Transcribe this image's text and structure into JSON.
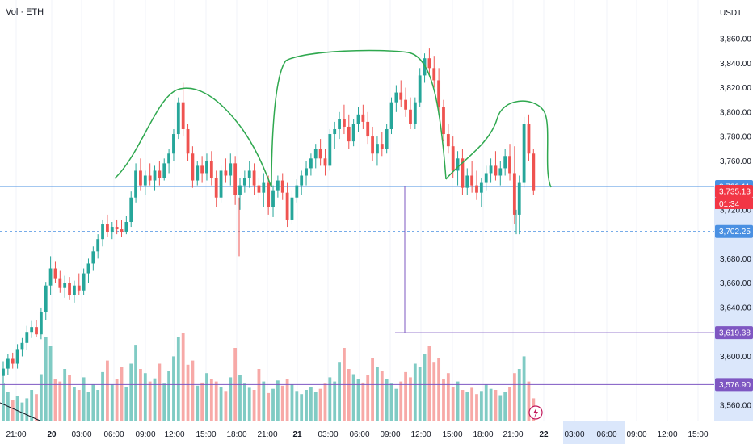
{
  "header": {
    "volume_label": "Vol · ETH",
    "currency": "USDT"
  },
  "colors": {
    "up": "#26a69a",
    "down": "#ef5350",
    "up_vol": "#80cbc4",
    "down_vol": "#f7a9a7",
    "h_line": "#4a90e2",
    "purple": "#7e57c2",
    "annotation": "#2fa84f",
    "price_flag": "#f23645"
  },
  "chart_data": {
    "type": "candlestick",
    "title": "",
    "y_axis": {
      "ticks": [
        "3,860.00",
        "3,840.00",
        "3,820.00",
        "3,800.00",
        "3,780.00",
        "3,760.00",
        "3,720.00",
        "3,680.00",
        "3,660.00",
        "3,640.00",
        "3,600.00",
        "3,560.00"
      ],
      "range": [
        3548,
        3874
      ]
    },
    "x_axis": {
      "ticks": [
        "21:00",
        "20",
        "03:00",
        "06:00",
        "09:00",
        "12:00",
        "15:00",
        "18:00",
        "21:00",
        "21",
        "03:00",
        "06:00",
        "09:00",
        "12:00",
        "15:00",
        "18:00",
        "21:00",
        "22",
        "03:00",
        "06:00",
        "09:00",
        "12:00",
        "15:00"
      ],
      "highlighted_ticks": [
        "03:00",
        "06:00"
      ]
    },
    "horizontal_lines": [
      {
        "label": "3,739.11",
        "value": 3739.11,
        "style": "solid",
        "color": "#4a90e2"
      },
      {
        "label": "3,702.25",
        "value": 3702.25,
        "style": "dashed",
        "color": "#4a90e2"
      },
      {
        "label": "3,619.38",
        "value": 3619.38,
        "style": "solid",
        "color": "#7e57c2"
      },
      {
        "label": "3,576.90",
        "value": 3576.9,
        "style": "solid",
        "color": "#7e57c2"
      }
    ],
    "current_price": {
      "label": "3,735.13",
      "countdown": "01:34",
      "value": 3735.13
    },
    "candles_ohlc": [
      [
        3584,
        3596,
        3578,
        3590
      ],
      [
        3590,
        3602,
        3585,
        3598
      ],
      [
        3598,
        3603,
        3590,
        3594
      ],
      [
        3594,
        3610,
        3590,
        3606
      ],
      [
        3606,
        3615,
        3600,
        3611
      ],
      [
        3611,
        3625,
        3605,
        3620
      ],
      [
        3620,
        3629,
        3615,
        3624
      ],
      [
        3624,
        3630,
        3616,
        3618
      ],
      [
        3618,
        3640,
        3614,
        3636
      ],
      [
        3636,
        3661,
        3630,
        3658
      ],
      [
        3658,
        3682,
        3650,
        3672
      ],
      [
        3672,
        3678,
        3660,
        3664
      ],
      [
        3664,
        3670,
        3652,
        3656
      ],
      [
        3656,
        3666,
        3648,
        3660
      ],
      [
        3660,
        3665,
        3646,
        3650
      ],
      [
        3650,
        3662,
        3644,
        3658
      ],
      [
        3658,
        3668,
        3650,
        3654
      ],
      [
        3654,
        3672,
        3650,
        3668
      ],
      [
        3668,
        3680,
        3660,
        3676
      ],
      [
        3676,
        3690,
        3670,
        3686
      ],
      [
        3686,
        3700,
        3680,
        3696
      ],
      [
        3696,
        3712,
        3690,
        3708
      ],
      [
        3708,
        3716,
        3698,
        3702
      ],
      [
        3702,
        3710,
        3696,
        3706
      ],
      [
        3706,
        3712,
        3700,
        3704
      ],
      [
        3704,
        3712,
        3698,
        3702
      ],
      [
        3702,
        3715,
        3700,
        3710
      ],
      [
        3710,
        3735,
        3706,
        3730
      ],
      [
        3730,
        3758,
        3726,
        3752
      ],
      [
        3752,
        3762,
        3736,
        3740
      ],
      [
        3740,
        3752,
        3732,
        3748
      ],
      [
        3748,
        3758,
        3740,
        3744
      ],
      [
        3744,
        3756,
        3736,
        3752
      ],
      [
        3752,
        3760,
        3740,
        3746
      ],
      [
        3746,
        3762,
        3744,
        3758
      ],
      [
        3758,
        3770,
        3750,
        3766
      ],
      [
        3766,
        3786,
        3760,
        3782
      ],
      [
        3782,
        3812,
        3778,
        3808
      ],
      [
        3808,
        3824,
        3780,
        3786
      ],
      [
        3786,
        3790,
        3760,
        3766
      ],
      [
        3766,
        3772,
        3738,
        3744
      ],
      [
        3744,
        3760,
        3740,
        3756
      ],
      [
        3756,
        3764,
        3742,
        3750
      ],
      [
        3750,
        3766,
        3744,
        3760
      ],
      [
        3760,
        3768,
        3740,
        3746
      ],
      [
        3746,
        3752,
        3722,
        3730
      ],
      [
        3730,
        3756,
        3726,
        3752
      ],
      [
        3752,
        3762,
        3742,
        3748
      ],
      [
        3748,
        3766,
        3740,
        3758
      ],
      [
        3758,
        3764,
        3724,
        3732
      ],
      [
        3732,
        3746,
        3720,
        3740
      ],
      [
        3740,
        3752,
        3734,
        3746
      ],
      [
        3746,
        3760,
        3738,
        3752
      ],
      [
        3752,
        3758,
        3732,
        3740
      ],
      [
        3740,
        3746,
        3728,
        3734
      ],
      [
        3734,
        3750,
        3722,
        3742
      ],
      [
        3742,
        3748,
        3716,
        3722
      ],
      [
        3722,
        3740,
        3714,
        3736
      ],
      [
        3736,
        3748,
        3730,
        3744
      ],
      [
        3744,
        3750,
        3728,
        3734
      ],
      [
        3734,
        3742,
        3706,
        3712
      ],
      [
        3712,
        3736,
        3708,
        3730
      ],
      [
        3730,
        3745,
        3726,
        3740
      ],
      [
        3740,
        3752,
        3732,
        3748
      ],
      [
        3748,
        3760,
        3740,
        3754
      ],
      [
        3754,
        3766,
        3748,
        3762
      ],
      [
        3762,
        3774,
        3754,
        3770
      ],
      [
        3770,
        3778,
        3756,
        3762
      ],
      [
        3762,
        3770,
        3748,
        3756
      ],
      [
        3756,
        3786,
        3752,
        3782
      ],
      [
        3782,
        3792,
        3770,
        3786
      ],
      [
        3786,
        3800,
        3778,
        3794
      ],
      [
        3794,
        3806,
        3782,
        3788
      ],
      [
        3788,
        3798,
        3770,
        3776
      ],
      [
        3776,
        3794,
        3772,
        3790
      ],
      [
        3790,
        3804,
        3784,
        3798
      ],
      [
        3798,
        3806,
        3786,
        3792
      ],
      [
        3792,
        3800,
        3774,
        3780
      ],
      [
        3780,
        3788,
        3760,
        3766
      ],
      [
        3766,
        3780,
        3756,
        3774
      ],
      [
        3774,
        3784,
        3764,
        3770
      ],
      [
        3770,
        3790,
        3766,
        3786
      ],
      [
        3786,
        3812,
        3782,
        3808
      ],
      [
        3808,
        3822,
        3800,
        3816
      ],
      [
        3816,
        3826,
        3804,
        3810
      ],
      [
        3810,
        3820,
        3796,
        3802
      ],
      [
        3802,
        3812,
        3786,
        3790
      ],
      [
        3790,
        3812,
        3786,
        3808
      ],
      [
        3808,
        3836,
        3804,
        3830
      ],
      [
        3830,
        3848,
        3824,
        3844
      ],
      [
        3844,
        3852,
        3830,
        3836
      ],
      [
        3836,
        3846,
        3820,
        3826
      ],
      [
        3826,
        3836,
        3798,
        3804
      ],
      [
        3804,
        3810,
        3776,
        3782
      ],
      [
        3782,
        3790,
        3766,
        3772
      ],
      [
        3772,
        3780,
        3746,
        3752
      ],
      [
        3752,
        3768,
        3740,
        3762
      ],
      [
        3762,
        3770,
        3732,
        3738
      ],
      [
        3738,
        3754,
        3732,
        3748
      ],
      [
        3748,
        3760,
        3734,
        3740
      ],
      [
        3740,
        3752,
        3728,
        3734
      ],
      [
        3734,
        3746,
        3722,
        3742
      ],
      [
        3742,
        3756,
        3736,
        3750
      ],
      [
        3750,
        3762,
        3742,
        3756
      ],
      [
        3756,
        3768,
        3744,
        3748
      ],
      [
        3748,
        3760,
        3740,
        3754
      ],
      [
        3754,
        3770,
        3748,
        3764
      ],
      [
        3764,
        3774,
        3744,
        3750
      ],
      [
        3750,
        3772,
        3708,
        3716
      ],
      [
        3716,
        3748,
        3700,
        3742
      ],
      [
        3742,
        3796,
        3738,
        3790
      ],
      [
        3790,
        3798,
        3760,
        3766
      ],
      [
        3766,
        3770,
        3732,
        3736
      ]
    ],
    "volumes": [
      0.36,
      0.28,
      0.2,
      0.24,
      0.18,
      0.22,
      0.3,
      0.26,
      0.45,
      0.8,
      0.72,
      0.4,
      0.38,
      0.5,
      0.44,
      0.33,
      0.3,
      0.42,
      0.28,
      0.35,
      0.3,
      0.47,
      0.58,
      0.35,
      0.4,
      0.52,
      0.33,
      0.55,
      0.73,
      0.5,
      0.46,
      0.38,
      0.41,
      0.55,
      0.36,
      0.48,
      0.62,
      0.8,
      0.84,
      0.54,
      0.58,
      0.34,
      0.37,
      0.46,
      0.4,
      0.38,
      0.33,
      0.29,
      0.42,
      0.7,
      0.44,
      0.36,
      0.32,
      0.3,
      0.5,
      0.38,
      0.27,
      0.31,
      0.39,
      0.34,
      0.4,
      0.35,
      0.29,
      0.26,
      0.3,
      0.33,
      0.28,
      0.31,
      0.36,
      0.42,
      0.38,
      0.56,
      0.7,
      0.5,
      0.45,
      0.4,
      0.37,
      0.44,
      0.6,
      0.52,
      0.48,
      0.4,
      0.36,
      0.31,
      0.38,
      0.47,
      0.42,
      0.55,
      0.52,
      0.64,
      0.72,
      0.56,
      0.6,
      0.4,
      0.46,
      0.33,
      0.38,
      0.3,
      0.28,
      0.32,
      0.26,
      0.29,
      0.35,
      0.31,
      0.3,
      0.25,
      0.28,
      0.33,
      0.46,
      0.5,
      0.62,
      0.38,
      0.22
    ]
  }
}
